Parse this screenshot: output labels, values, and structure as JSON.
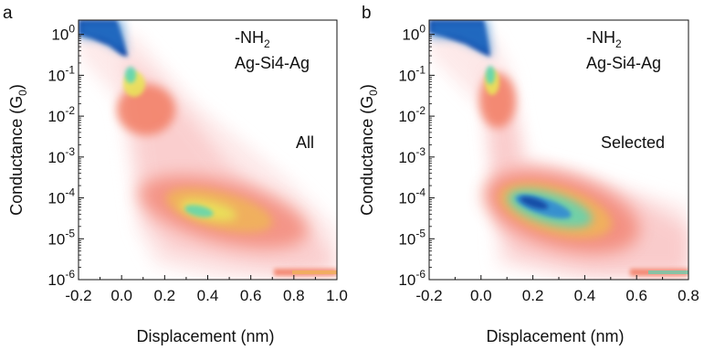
{
  "figure": {
    "panels": [
      {
        "letter": "a",
        "group_label": "-NH",
        "group_subscript": "2",
        "junction_label": "Ag-Si4-Ag",
        "condition_label": "All",
        "xlabel": "Displacement (nm)",
        "ylabel_main": "Conductance (G",
        "ylabel_sub": "0",
        "ylabel_end": ")"
      },
      {
        "letter": "b",
        "group_label": "-NH",
        "group_subscript": "2",
        "junction_label": "Ag-Si4-Ag",
        "condition_label": "Selected",
        "xlabel": "Displacement (nm)",
        "ylabel_main": "Conductance (G",
        "ylabel_sub": "0",
        "ylabel_end": ")"
      }
    ]
  },
  "chart_data": [
    {
      "type": "heatmap",
      "panel": "a",
      "xlabel": "Displacement (nm)",
      "ylabel": "Conductance (G0)",
      "xlim": [
        -0.2,
        1.0
      ],
      "ylim_log10": [
        -6,
        0.35
      ],
      "y_scale": "log",
      "x_ticks": [
        "-0.2",
        "0.0",
        "0.2",
        "0.4",
        "0.6",
        "0.8",
        "1.0"
      ],
      "x_tick_values": [
        -0.2,
        0.0,
        0.2,
        0.4,
        0.6,
        0.8,
        1.0
      ],
      "y_tick_exponents": [
        0,
        -1,
        -2,
        -3,
        -4,
        -5,
        -6
      ],
      "colormap": [
        "#ffffff",
        "#fbd3d3",
        "#f59a91",
        "#f27d63",
        "#f0b35a",
        "#e9e35a",
        "#5cd6b4",
        "#2f86d6",
        "#103c9e"
      ],
      "density_regions": [
        {
          "x": [
            -0.2,
            0.0
          ],
          "log10_g": [
            0.3,
            -0.35
          ],
          "intensity": 0.95
        },
        {
          "x": [
            0.0,
            0.02
          ],
          "log10_g": [
            -0.35,
            -0.9
          ],
          "intensity": 0.95
        },
        {
          "x": [
            0.02,
            0.14
          ],
          "log10_g": [
            -0.9,
            -1.3
          ],
          "intensity": 0.75
        },
        {
          "x": [
            0.0,
            0.25
          ],
          "log10_g": [
            -1.4,
            -2.2
          ],
          "intensity": 0.35
        },
        {
          "x": [
            0.15,
            0.65
          ],
          "log10_g": [
            -3.7,
            -4.8
          ],
          "intensity": 0.6
        },
        {
          "x": [
            0.6,
            1.0
          ],
          "log10_g": [
            -5.8,
            -6.0
          ],
          "intensity": 0.55
        }
      ]
    },
    {
      "type": "heatmap",
      "panel": "b",
      "xlabel": "Displacement (nm)",
      "ylabel": "Conductance (G0)",
      "xlim": [
        -0.2,
        0.8
      ],
      "ylim_log10": [
        -6,
        0.35
      ],
      "y_scale": "log",
      "x_ticks": [
        "-0.2",
        "0.0",
        "0.2",
        "0.4",
        "0.6",
        "0.8"
      ],
      "x_tick_values": [
        -0.2,
        0.0,
        0.2,
        0.4,
        0.6,
        0.8
      ],
      "y_tick_exponents": [
        0,
        -1,
        -2,
        -3,
        -4,
        -5,
        -6
      ],
      "colormap": [
        "#ffffff",
        "#fbd3d3",
        "#f59a91",
        "#f27d63",
        "#f0b35a",
        "#e9e35a",
        "#5cd6b4",
        "#2f86d6",
        "#103c9e"
      ],
      "density_regions": [
        {
          "x": [
            -0.2,
            0.0
          ],
          "log10_g": [
            0.3,
            -0.35
          ],
          "intensity": 0.95
        },
        {
          "x": [
            0.0,
            0.02
          ],
          "log10_g": [
            -0.35,
            -1.0
          ],
          "intensity": 0.9
        },
        {
          "x": [
            0.02,
            0.18
          ],
          "log10_g": [
            -1.0,
            -2.7
          ],
          "intensity": 0.4
        },
        {
          "x": [
            0.1,
            0.55
          ],
          "log10_g": [
            -3.7,
            -4.8
          ],
          "intensity": 0.85
        },
        {
          "x": [
            0.55,
            0.8
          ],
          "log10_g": [
            -5.8,
            -6.0
          ],
          "intensity": 0.5
        }
      ]
    }
  ]
}
